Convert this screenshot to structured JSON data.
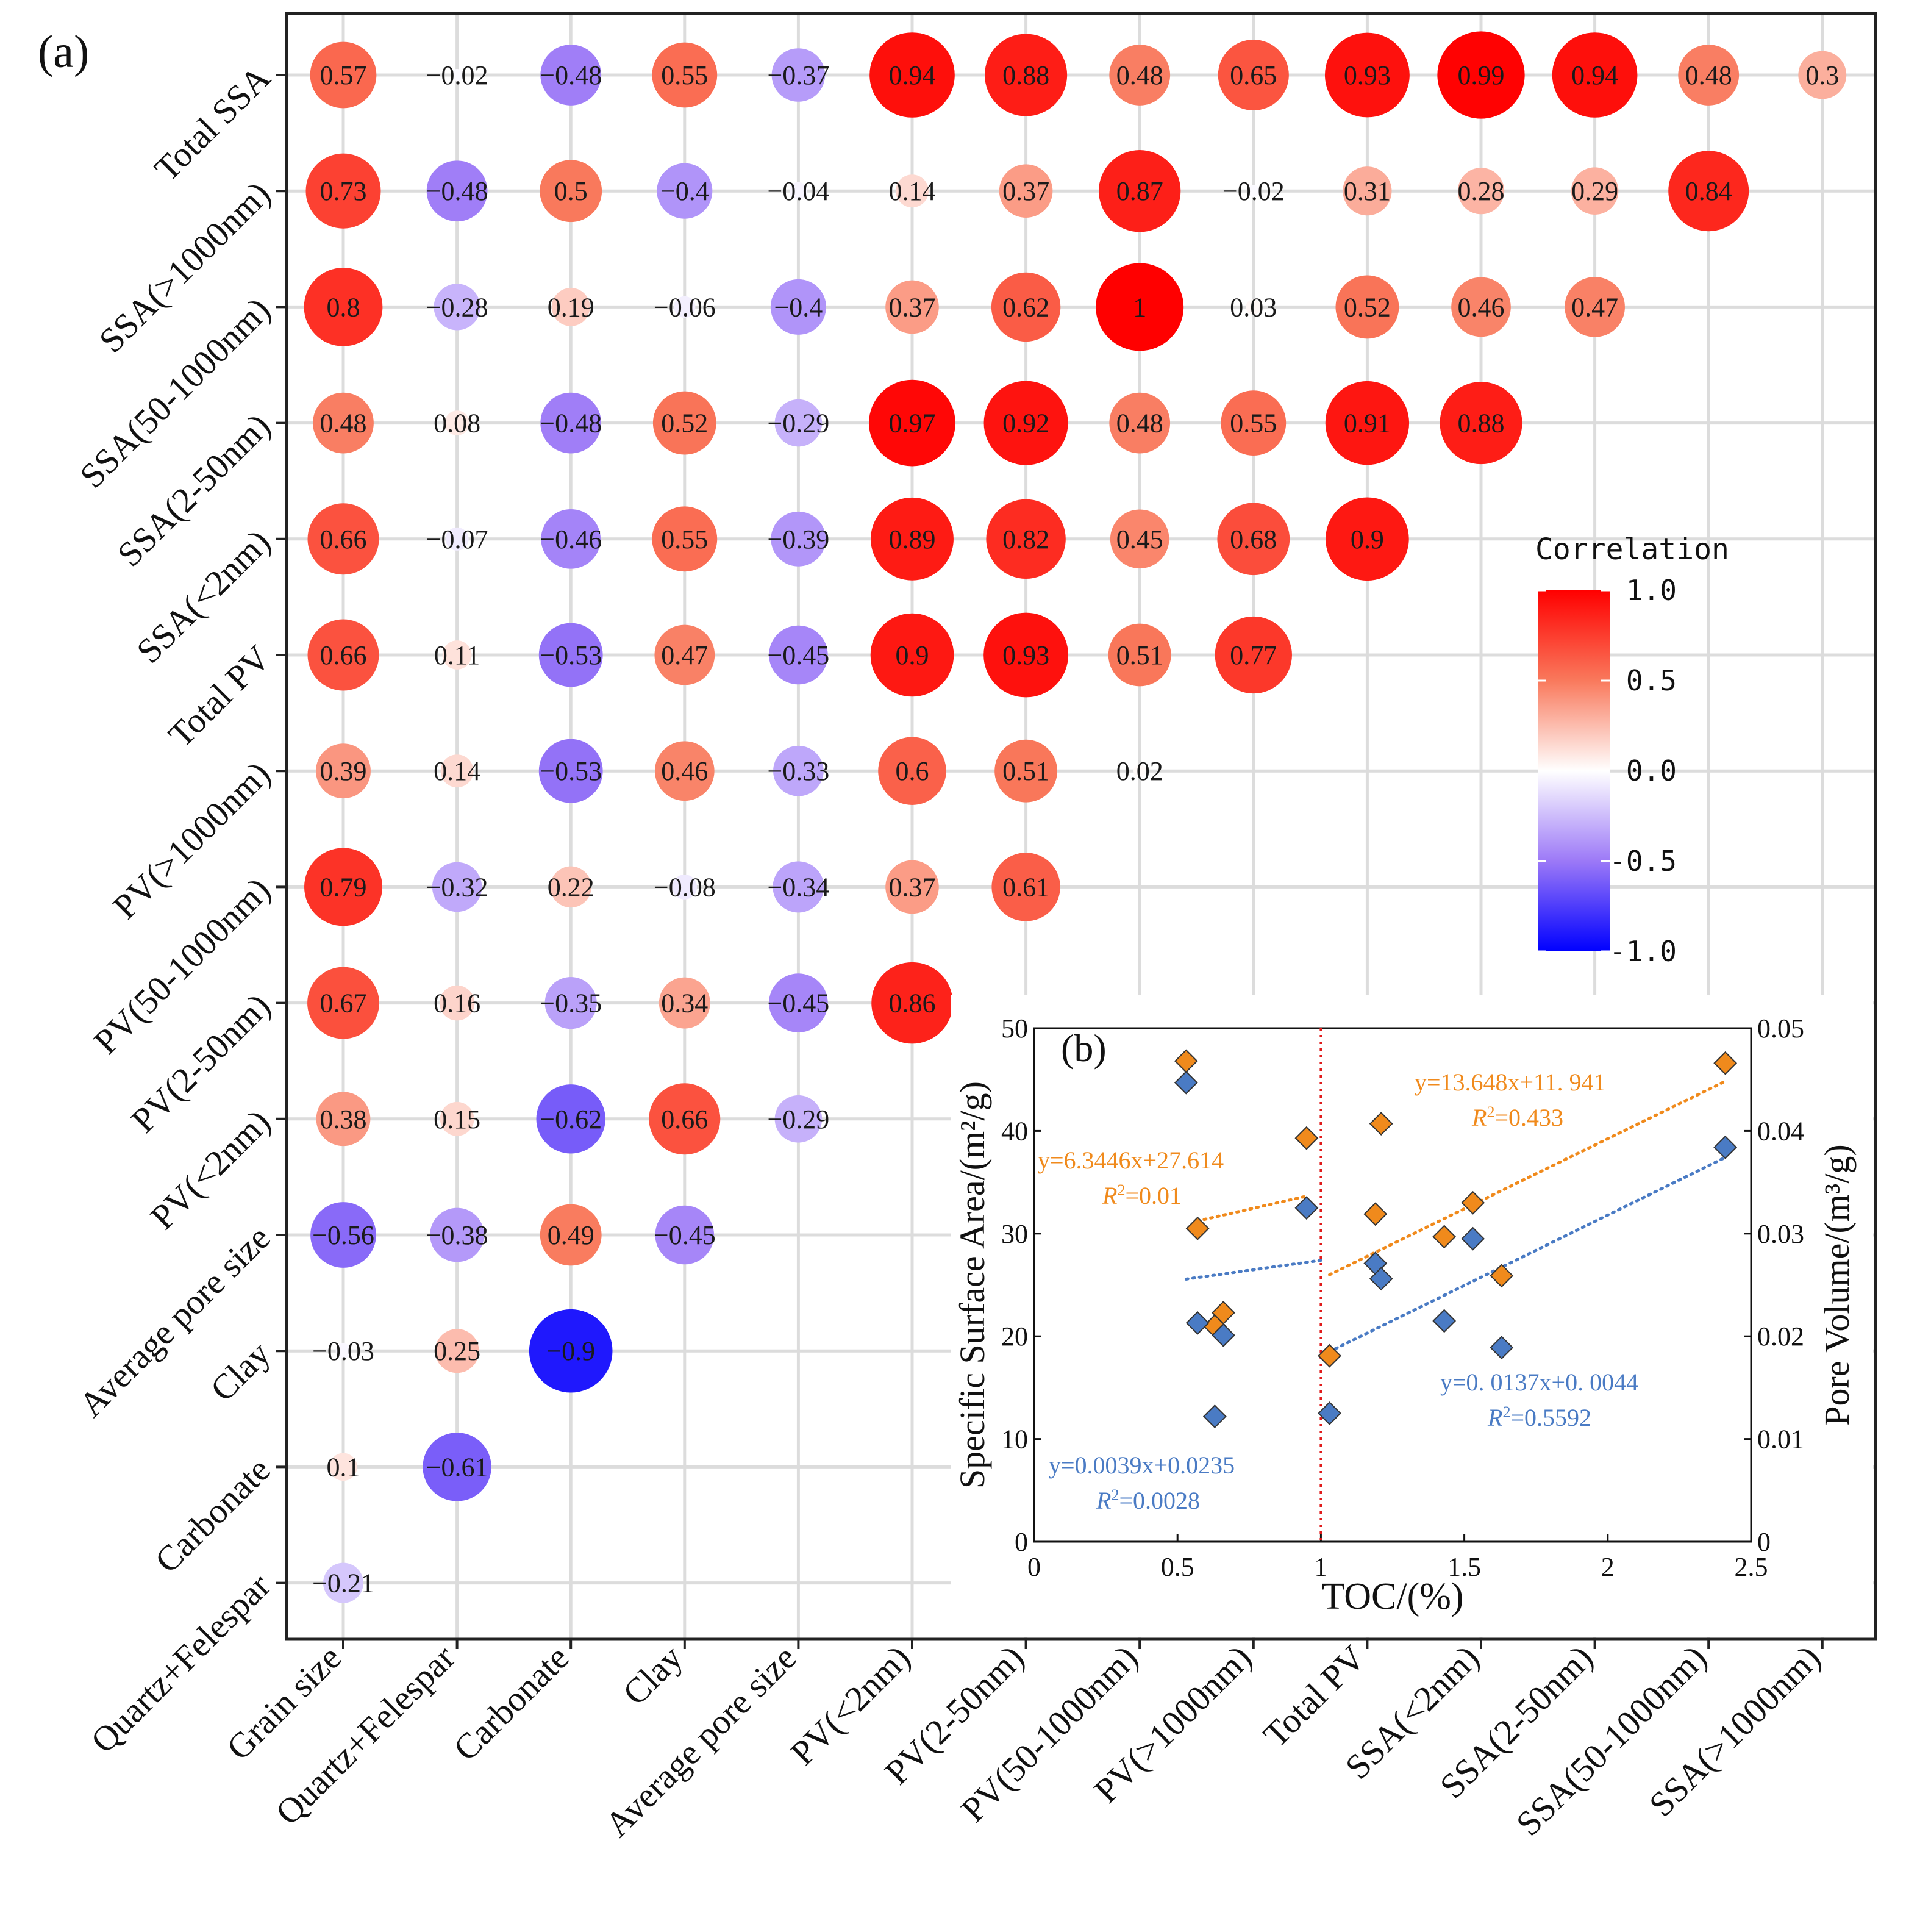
{
  "panel_a": {
    "label": "(a)",
    "legend": {
      "title": "Correlation",
      "ticks": [
        "1.0",
        "0.5",
        "0.0",
        "-0.5",
        "-1.0"
      ]
    }
  },
  "panel_b": {
    "label": "(b)",
    "equations": {
      "orange_left": "y=6.3446x+27.614",
      "orange_left_r2": "=0.01",
      "orange_right": "y=13.648x+11. 941",
      "orange_right_r2": "=0.433",
      "blue_left": "y=0.0039x+0.0235",
      "blue_left_r2": "=0.0028",
      "blue_right": "y=0. 0137x+0. 0044",
      "blue_right_r2": "=0.5592",
      "r2_prefix": "R",
      "r2_exp": "2"
    }
  },
  "chart_data": [
    {
      "type": "heatmap",
      "title": "",
      "colorbar": {
        "title": "Correlation",
        "range": [
          -1.0,
          1.0
        ],
        "colors": [
          "#0000ff",
          "#ffffff",
          "#ff0000"
        ]
      },
      "x_labels": [
        "Grain size",
        "Quartz+Felespar",
        "Carbonate",
        "Clay",
        "Average pore size",
        "PV(<2nm)",
        "PV(2-50nm)",
        "PV(50-1000nm)",
        "PV(>1000nm)",
        "Total PV",
        "SSA(<2nm)",
        "SSA(2-50nm)",
        "SSA(50-1000nm)",
        "SSA(>1000nm)"
      ],
      "y_labels": [
        "Total SSA",
        "SSA(>1000nm)",
        "SSA(50-1000nm)",
        "SSA(2-50nm)",
        "SSA(<2nm)",
        "Total PV",
        "PV(>1000nm)",
        "PV(50-1000nm)",
        "PV(2-50nm)",
        "PV(<2nm)",
        "Average pore size",
        "Clay",
        "Carbonate",
        "Quartz+Felespar"
      ],
      "values": [
        [
          0.57,
          -0.02,
          -0.48,
          0.55,
          -0.37,
          0.94,
          0.88,
          0.48,
          0.65,
          0.93,
          0.99,
          0.94,
          0.48,
          0.3
        ],
        [
          0.73,
          -0.48,
          0.5,
          -0.4,
          -0.04,
          0.14,
          0.37,
          0.87,
          -0.02,
          0.31,
          0.28,
          0.29,
          0.84
        ],
        [
          0.8,
          -0.28,
          0.19,
          -0.06,
          -0.4,
          0.37,
          0.62,
          1,
          0.03,
          0.52,
          0.46,
          0.47
        ],
        [
          0.48,
          0.08,
          -0.48,
          0.52,
          -0.29,
          0.97,
          0.92,
          0.48,
          0.55,
          0.91,
          0.88
        ],
        [
          0.66,
          -0.07,
          -0.46,
          0.55,
          -0.39,
          0.89,
          0.82,
          0.45,
          0.68,
          0.9
        ],
        [
          0.66,
          0.11,
          -0.53,
          0.47,
          -0.45,
          0.9,
          0.93,
          0.51,
          0.77
        ],
        [
          0.39,
          0.14,
          -0.53,
          0.46,
          -0.33,
          0.6,
          0.51,
          0.02
        ],
        [
          0.79,
          -0.32,
          0.22,
          -0.08,
          -0.34,
          0.37,
          0.61
        ],
        [
          0.67,
          0.16,
          -0.35,
          0.34,
          -0.45,
          0.86
        ],
        [
          0.38,
          0.15,
          -0.62,
          0.66,
          -0.29
        ],
        [
          -0.56,
          -0.38,
          0.49,
          -0.45
        ],
        [
          -0.03,
          0.25,
          -0.9
        ],
        [
          0.1,
          -0.61
        ],
        [
          -0.21
        ]
      ],
      "value_labels": [
        [
          "0.57",
          "−0.02",
          "−0.48",
          "0.55",
          "−0.37",
          "0.94",
          "0.88",
          "0.48",
          "0.65",
          "0.93",
          "0.99",
          "0.94",
          "0.48",
          "0.3"
        ],
        [
          "0.73",
          "−0.48",
          "0.5",
          "−0.4",
          "−0.04",
          "0.14",
          "0.37",
          "0.87",
          "−0.02",
          "0.31",
          "0.28",
          "0.29",
          "0.84"
        ],
        [
          "0.8",
          "−0.28",
          "0.19",
          "−0.06",
          "−0.4",
          "0.37",
          "0.62",
          "1",
          "0.03",
          "0.52",
          "0.46",
          "0.47"
        ],
        [
          "0.48",
          "0.08",
          "−0.48",
          "0.52",
          "−0.29",
          "0.97",
          "0.92",
          "0.48",
          "0.55",
          "0.91",
          "0.88"
        ],
        [
          "0.66",
          "−0.07",
          "−0.46",
          "0.55",
          "−0.39",
          "0.89",
          "0.82",
          "0.45",
          "0.68",
          "0.9"
        ],
        [
          "0.66",
          "0.11",
          "−0.53",
          "0.47",
          "−0.45",
          "0.9",
          "0.93",
          "0.51",
          "0.77"
        ],
        [
          "0.39",
          "0.14",
          "−0.53",
          "0.46",
          "−0.33",
          "0.6",
          "0.51",
          "0.02"
        ],
        [
          "0.79",
          "−0.32",
          "0.22",
          "−0.08",
          "−0.34",
          "0.37",
          "0.61"
        ],
        [
          "0.67",
          "0.16",
          "−0.35",
          "0.34",
          "−0.45",
          "0.86"
        ],
        [
          "0.38",
          "0.15",
          "−0.62",
          "0.66",
          "−0.29"
        ],
        [
          "−0.56",
          "−0.38",
          "0.49",
          "−0.45"
        ],
        [
          "−0.03",
          "0.25",
          "−0.9"
        ],
        [
          "0.1",
          "−0.61"
        ],
        [
          "−0.21"
        ]
      ]
    },
    {
      "type": "scatter",
      "xlabel": "TOC/(%)",
      "ylabel_left": "Specific Surface Area/(m²/g)",
      "ylabel_right": "Pore Volume/(m³/g)",
      "xlim": [
        0,
        2.5
      ],
      "ylim_left": [
        0,
        50
      ],
      "ylim_right": [
        0,
        0.05
      ],
      "x_ticks": [
        "0",
        "0.5",
        "1",
        "1.5",
        "2",
        "2.5"
      ],
      "y_ticks_left": [
        "0",
        "10",
        "20",
        "30",
        "40",
        "50"
      ],
      "y_ticks_right": [
        "0",
        "0.01",
        "0.02",
        "0.03",
        "0.04",
        "0.05"
      ],
      "divider_x": 1,
      "series": [
        {
          "name": "Specific Surface Area",
          "axis": "left",
          "color": "#f08a1c",
          "marker": "diamond",
          "points": [
            [
              0.53,
              46.8
            ],
            [
              0.57,
              30.5
            ],
            [
              0.95,
              39.3
            ],
            [
              0.63,
              21.0
            ],
            [
              0.66,
              22.3
            ],
            [
              1.03,
              18.1
            ],
            [
              1.19,
              31.9
            ],
            [
              1.21,
              40.7
            ],
            [
              1.43,
              29.7
            ],
            [
              1.53,
              33.0
            ],
            [
              1.63,
              25.9
            ],
            [
              2.41,
              46.6
            ]
          ]
        },
        {
          "name": "Pore Volume",
          "axis": "right",
          "color": "#4a7bc4",
          "marker": "diamond",
          "points": [
            [
              0.53,
              0.0447
            ],
            [
              0.95,
              0.0325
            ],
            [
              0.57,
              0.0213
            ],
            [
              0.66,
              0.0201
            ],
            [
              0.63,
              0.0122
            ],
            [
              1.03,
              0.0125
            ],
            [
              1.19,
              0.0271
            ],
            [
              1.21,
              0.0256
            ],
            [
              1.43,
              0.0215
            ],
            [
              1.53,
              0.0295
            ],
            [
              1.63,
              0.0189
            ],
            [
              2.41,
              0.0384
            ]
          ]
        }
      ],
      "fits": [
        {
          "series": "Specific Surface Area",
          "x": [
            0.57,
            0.95
          ],
          "equation": "y=6.3446x+27.614",
          "r2": 0.01,
          "color": "#f08a1c"
        },
        {
          "series": "Specific Surface Area",
          "x": [
            1.03,
            2.41
          ],
          "equation": "y=13.648x+11.941",
          "r2": 0.433,
          "color": "#f08a1c"
        },
        {
          "series": "Pore Volume",
          "x": [
            0.53,
            1.0
          ],
          "equation": "y=0.0039x+0.0235",
          "r2": 0.0028,
          "color": "#4a7bc4"
        },
        {
          "series": "Pore Volume",
          "x": [
            1.03,
            2.41
          ],
          "equation": "y=0.0137x+0.0044",
          "r2": 0.5592,
          "color": "#4a7bc4"
        }
      ]
    }
  ]
}
